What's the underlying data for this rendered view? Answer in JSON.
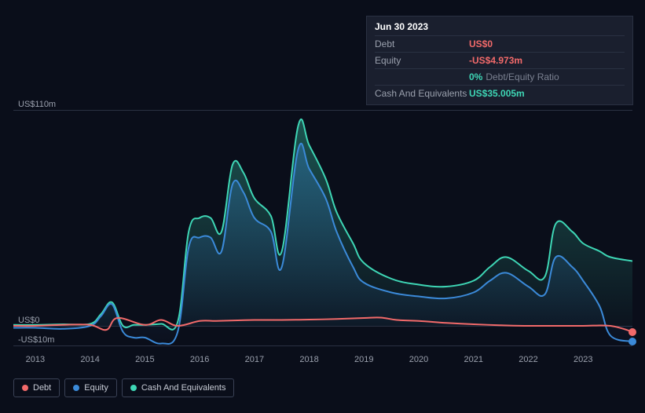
{
  "tooltip": {
    "date": "Jun 30 2023",
    "rows": [
      {
        "label": "Debt",
        "value": "US$0",
        "color": "#f26a6a"
      },
      {
        "label": "Equity",
        "value": "-US$4.973m",
        "color": "#f26a6a"
      },
      {
        "label": "",
        "value": "0%",
        "sub": "Debt/Equity Ratio",
        "color": "#3ed6b5"
      },
      {
        "label": "Cash And Equivalents",
        "value": "US$35.005m",
        "color": "#3ed6b5"
      }
    ]
  },
  "chart": {
    "ylim": [
      -10,
      110
    ],
    "y_ticks": [
      {
        "v": 110,
        "label": "US$110m"
      },
      {
        "v": 0,
        "label": "US$0"
      },
      {
        "v": -10,
        "label": "-US$10m"
      }
    ],
    "x_years": [
      2013,
      2014,
      2015,
      2016,
      2017,
      2018,
      2019,
      2020,
      2021,
      2022,
      2023
    ],
    "x_range": [
      2012.6,
      2023.9
    ],
    "colors": {
      "debt": "#f26a6a",
      "equity": "#3b8ad9",
      "cash": "#3ed6b5",
      "background": "#0a0e1a",
      "grid": "#2a3142"
    },
    "series": {
      "debt": [
        [
          2012.6,
          0
        ],
        [
          2013.0,
          0
        ],
        [
          2013.5,
          0.5
        ],
        [
          2014.0,
          0.5
        ],
        [
          2014.3,
          -2
        ],
        [
          2014.5,
          4
        ],
        [
          2015.0,
          0.5
        ],
        [
          2015.3,
          3
        ],
        [
          2015.6,
          0
        ],
        [
          2016.0,
          2.5
        ],
        [
          2016.3,
          2.5
        ],
        [
          2016.7,
          2.8
        ],
        [
          2017.0,
          3
        ],
        [
          2017.5,
          3
        ],
        [
          2018.0,
          3.2
        ],
        [
          2018.5,
          3.5
        ],
        [
          2019.0,
          4
        ],
        [
          2019.3,
          4.2
        ],
        [
          2019.6,
          3
        ],
        [
          2020.0,
          2.5
        ],
        [
          2020.5,
          1.5
        ],
        [
          2021.0,
          0.8
        ],
        [
          2021.5,
          0.3
        ],
        [
          2022.0,
          0
        ],
        [
          2022.5,
          0
        ],
        [
          2023.0,
          0
        ],
        [
          2023.5,
          0
        ],
        [
          2023.9,
          -3
        ]
      ],
      "equity": [
        [
          2012.6,
          -1
        ],
        [
          2013.0,
          -1
        ],
        [
          2013.5,
          -1.5
        ],
        [
          2014.0,
          0
        ],
        [
          2014.2,
          5
        ],
        [
          2014.4,
          11
        ],
        [
          2014.6,
          -3
        ],
        [
          2014.8,
          -6
        ],
        [
          2015.0,
          -6
        ],
        [
          2015.3,
          -9
        ],
        [
          2015.6,
          -3
        ],
        [
          2015.8,
          40
        ],
        [
          2016.0,
          45
        ],
        [
          2016.2,
          45
        ],
        [
          2016.4,
          38
        ],
        [
          2016.6,
          72
        ],
        [
          2016.8,
          68
        ],
        [
          2017.0,
          55
        ],
        [
          2017.3,
          48
        ],
        [
          2017.5,
          30
        ],
        [
          2017.8,
          90
        ],
        [
          2018.0,
          80
        ],
        [
          2018.3,
          65
        ],
        [
          2018.5,
          48
        ],
        [
          2018.8,
          30
        ],
        [
          2019.0,
          22
        ],
        [
          2019.5,
          17
        ],
        [
          2020.0,
          15
        ],
        [
          2020.5,
          14
        ],
        [
          2021.0,
          17
        ],
        [
          2021.3,
          23
        ],
        [
          2021.6,
          27
        ],
        [
          2022.0,
          20
        ],
        [
          2022.3,
          16
        ],
        [
          2022.5,
          35
        ],
        [
          2022.8,
          30
        ],
        [
          2023.0,
          23
        ],
        [
          2023.3,
          10
        ],
        [
          2023.5,
          -5
        ],
        [
          2023.9,
          -8
        ]
      ],
      "cash": [
        [
          2012.6,
          0.5
        ],
        [
          2013.0,
          0.5
        ],
        [
          2013.5,
          0.8
        ],
        [
          2014.0,
          1
        ],
        [
          2014.2,
          6
        ],
        [
          2014.4,
          12
        ],
        [
          2014.6,
          0
        ],
        [
          2014.8,
          0.5
        ],
        [
          2015.0,
          0.5
        ],
        [
          2015.3,
          1
        ],
        [
          2015.6,
          2
        ],
        [
          2015.8,
          48
        ],
        [
          2016.0,
          55
        ],
        [
          2016.2,
          55
        ],
        [
          2016.4,
          48
        ],
        [
          2016.6,
          82
        ],
        [
          2016.8,
          78
        ],
        [
          2017.0,
          65
        ],
        [
          2017.3,
          56
        ],
        [
          2017.5,
          38
        ],
        [
          2017.8,
          102
        ],
        [
          2018.0,
          92
        ],
        [
          2018.3,
          75
        ],
        [
          2018.5,
          58
        ],
        [
          2018.8,
          42
        ],
        [
          2019.0,
          32
        ],
        [
          2019.5,
          24
        ],
        [
          2020.0,
          21
        ],
        [
          2020.5,
          20
        ],
        [
          2021.0,
          23
        ],
        [
          2021.3,
          30
        ],
        [
          2021.6,
          35
        ],
        [
          2022.0,
          28
        ],
        [
          2022.3,
          25
        ],
        [
          2022.5,
          52
        ],
        [
          2022.8,
          48
        ],
        [
          2023.0,
          42
        ],
        [
          2023.3,
          38
        ],
        [
          2023.5,
          35
        ],
        [
          2023.9,
          33
        ]
      ]
    }
  },
  "legend": [
    {
      "name": "Debt",
      "color": "#f26a6a"
    },
    {
      "name": "Equity",
      "color": "#3b8ad9"
    },
    {
      "name": "Cash And Equivalents",
      "color": "#3ed6b5"
    }
  ]
}
